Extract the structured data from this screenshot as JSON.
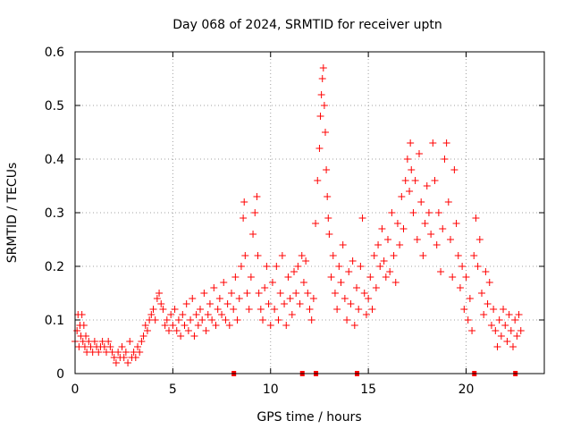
{
  "chart_data": {
    "type": "scatter",
    "title": "Day 068 of 2024, SRMTID for receiver uptn",
    "xlabel": "GPS time / hours",
    "ylabel": "SRMTID / TECUs",
    "xlim": [
      0,
      24
    ],
    "ylim": [
      0,
      0.6
    ],
    "x_ticks": [
      0,
      5,
      10,
      15,
      20
    ],
    "x_tick_labels": [
      "0",
      "5",
      "10",
      "15",
      "20"
    ],
    "y_ticks": [
      0,
      0.1,
      0.2,
      0.3,
      0.4,
      0.5,
      0.6
    ],
    "y_tick_labels": [
      "0",
      "0.1",
      "0.2",
      "0.3",
      "0.4",
      "0.5",
      "0.6"
    ],
    "grid": true,
    "marker": "+",
    "color": "#ff0000",
    "series": [
      {
        "name": "SRMTID",
        "points": [
          [
            0.0,
            0.06
          ],
          [
            0.1,
            0.08
          ],
          [
            0.15,
            0.11
          ],
          [
            0.2,
            0.05
          ],
          [
            0.25,
            0.09
          ],
          [
            0.3,
            0.07
          ],
          [
            0.35,
            0.11
          ],
          [
            0.4,
            0.06
          ],
          [
            0.45,
            0.09
          ],
          [
            0.5,
            0.05
          ],
          [
            0.55,
            0.07
          ],
          [
            0.6,
            0.04
          ],
          [
            0.7,
            0.06
          ],
          [
            0.8,
            0.05
          ],
          [
            0.9,
            0.04
          ],
          [
            1.0,
            0.06
          ],
          [
            1.1,
            0.05
          ],
          [
            1.2,
            0.04
          ],
          [
            1.3,
            0.05
          ],
          [
            1.4,
            0.06
          ],
          [
            1.5,
            0.05
          ],
          [
            1.6,
            0.04
          ],
          [
            1.7,
            0.06
          ],
          [
            1.8,
            0.05
          ],
          [
            1.9,
            0.04
          ],
          [
            2.0,
            0.03
          ],
          [
            2.1,
            0.02
          ],
          [
            2.2,
            0.04
          ],
          [
            2.3,
            0.03
          ],
          [
            2.4,
            0.05
          ],
          [
            2.5,
            0.03
          ],
          [
            2.6,
            0.04
          ],
          [
            2.7,
            0.02
          ],
          [
            2.8,
            0.06
          ],
          [
            2.9,
            0.03
          ],
          [
            3.0,
            0.04
          ],
          [
            3.1,
            0.03
          ],
          [
            3.2,
            0.05
          ],
          [
            3.3,
            0.04
          ],
          [
            3.4,
            0.06
          ],
          [
            3.5,
            0.07
          ],
          [
            3.6,
            0.09
          ],
          [
            3.7,
            0.08
          ],
          [
            3.8,
            0.1
          ],
          [
            3.9,
            0.11
          ],
          [
            4.0,
            0.12
          ],
          [
            4.1,
            0.1
          ],
          [
            4.2,
            0.14
          ],
          [
            4.3,
            0.15
          ],
          [
            4.4,
            0.13
          ],
          [
            4.5,
            0.12
          ],
          [
            4.6,
            0.09
          ],
          [
            4.7,
            0.1
          ],
          [
            4.8,
            0.08
          ],
          [
            4.9,
            0.11
          ],
          [
            5.0,
            0.09
          ],
          [
            5.1,
            0.12
          ],
          [
            5.2,
            0.08
          ],
          [
            5.3,
            0.1
          ],
          [
            5.4,
            0.07
          ],
          [
            5.5,
            0.11
          ],
          [
            5.6,
            0.09
          ],
          [
            5.7,
            0.13
          ],
          [
            5.8,
            0.08
          ],
          [
            5.9,
            0.1
          ],
          [
            6.0,
            0.14
          ],
          [
            6.1,
            0.07
          ],
          [
            6.2,
            0.11
          ],
          [
            6.3,
            0.09
          ],
          [
            6.4,
            0.12
          ],
          [
            6.5,
            0.1
          ],
          [
            6.6,
            0.15
          ],
          [
            6.7,
            0.08
          ],
          [
            6.8,
            0.11
          ],
          [
            6.9,
            0.13
          ],
          [
            7.0,
            0.1
          ],
          [
            7.1,
            0.16
          ],
          [
            7.2,
            0.09
          ],
          [
            7.3,
            0.12
          ],
          [
            7.4,
            0.14
          ],
          [
            7.5,
            0.11
          ],
          [
            7.6,
            0.17
          ],
          [
            7.7,
            0.1
          ],
          [
            7.8,
            0.13
          ],
          [
            7.9,
            0.09
          ],
          [
            8.0,
            0.15
          ],
          [
            8.1,
            0.12
          ],
          [
            8.2,
            0.18
          ],
          [
            8.3,
            0.1
          ],
          [
            8.4,
            0.14
          ],
          [
            8.5,
            0.2
          ],
          [
            8.6,
            0.29
          ],
          [
            8.65,
            0.32
          ],
          [
            8.7,
            0.22
          ],
          [
            8.8,
            0.15
          ],
          [
            8.9,
            0.12
          ],
          [
            9.0,
            0.18
          ],
          [
            9.1,
            0.26
          ],
          [
            9.2,
            0.3
          ],
          [
            9.3,
            0.33
          ],
          [
            9.35,
            0.22
          ],
          [
            9.4,
            0.15
          ],
          [
            9.5,
            0.12
          ],
          [
            9.6,
            0.1
          ],
          [
            9.7,
            0.16
          ],
          [
            9.8,
            0.2
          ],
          [
            9.9,
            0.13
          ],
          [
            10.0,
            0.09
          ],
          [
            10.1,
            0.17
          ],
          [
            10.2,
            0.12
          ],
          [
            10.3,
            0.2
          ],
          [
            10.4,
            0.1
          ],
          [
            10.5,
            0.15
          ],
          [
            10.6,
            0.22
          ],
          [
            10.7,
            0.13
          ],
          [
            10.8,
            0.09
          ],
          [
            10.9,
            0.18
          ],
          [
            11.0,
            0.14
          ],
          [
            11.1,
            0.11
          ],
          [
            11.2,
            0.19
          ],
          [
            11.3,
            0.15
          ],
          [
            11.4,
            0.2
          ],
          [
            11.5,
            0.13
          ],
          [
            11.6,
            0.22
          ],
          [
            11.7,
            0.17
          ],
          [
            11.8,
            0.21
          ],
          [
            11.9,
            0.15
          ],
          [
            12.0,
            0.12
          ],
          [
            12.1,
            0.1
          ],
          [
            12.2,
            0.14
          ],
          [
            12.3,
            0.28
          ],
          [
            12.4,
            0.36
          ],
          [
            12.5,
            0.42
          ],
          [
            12.55,
            0.48
          ],
          [
            12.6,
            0.52
          ],
          [
            12.65,
            0.55
          ],
          [
            12.7,
            0.57
          ],
          [
            12.75,
            0.5
          ],
          [
            12.8,
            0.45
          ],
          [
            12.85,
            0.38
          ],
          [
            12.9,
            0.33
          ],
          [
            12.95,
            0.29
          ],
          [
            13.0,
            0.26
          ],
          [
            13.1,
            0.18
          ],
          [
            13.2,
            0.22
          ],
          [
            13.3,
            0.15
          ],
          [
            13.4,
            0.12
          ],
          [
            13.5,
            0.2
          ],
          [
            13.6,
            0.17
          ],
          [
            13.7,
            0.24
          ],
          [
            13.8,
            0.14
          ],
          [
            13.9,
            0.1
          ],
          [
            14.0,
            0.19
          ],
          [
            14.1,
            0.13
          ],
          [
            14.2,
            0.21
          ],
          [
            14.3,
            0.09
          ],
          [
            14.4,
            0.16
          ],
          [
            14.5,
            0.12
          ],
          [
            14.6,
            0.2
          ],
          [
            14.7,
            0.29
          ],
          [
            14.8,
            0.15
          ],
          [
            14.9,
            0.11
          ],
          [
            15.0,
            0.14
          ],
          [
            15.1,
            0.18
          ],
          [
            15.2,
            0.12
          ],
          [
            15.3,
            0.22
          ],
          [
            15.4,
            0.16
          ],
          [
            15.5,
            0.24
          ],
          [
            15.6,
            0.2
          ],
          [
            15.7,
            0.27
          ],
          [
            15.8,
            0.21
          ],
          [
            15.9,
            0.18
          ],
          [
            16.0,
            0.25
          ],
          [
            16.1,
            0.19
          ],
          [
            16.2,
            0.3
          ],
          [
            16.3,
            0.22
          ],
          [
            16.4,
            0.17
          ],
          [
            16.5,
            0.28
          ],
          [
            16.6,
            0.24
          ],
          [
            16.7,
            0.33
          ],
          [
            16.8,
            0.27
          ],
          [
            16.9,
            0.36
          ],
          [
            17.0,
            0.4
          ],
          [
            17.1,
            0.34
          ],
          [
            17.15,
            0.43
          ],
          [
            17.2,
            0.38
          ],
          [
            17.3,
            0.3
          ],
          [
            17.4,
            0.36
          ],
          [
            17.5,
            0.25
          ],
          [
            17.6,
            0.41
          ],
          [
            17.7,
            0.32
          ],
          [
            17.8,
            0.22
          ],
          [
            17.9,
            0.28
          ],
          [
            18.0,
            0.35
          ],
          [
            18.1,
            0.3
          ],
          [
            18.2,
            0.26
          ],
          [
            18.3,
            0.43
          ],
          [
            18.4,
            0.36
          ],
          [
            18.5,
            0.24
          ],
          [
            18.6,
            0.3
          ],
          [
            18.7,
            0.19
          ],
          [
            18.8,
            0.27
          ],
          [
            18.9,
            0.4
          ],
          [
            19.0,
            0.43
          ],
          [
            19.1,
            0.32
          ],
          [
            19.2,
            0.25
          ],
          [
            19.3,
            0.18
          ],
          [
            19.4,
            0.38
          ],
          [
            19.5,
            0.28
          ],
          [
            19.6,
            0.22
          ],
          [
            19.7,
            0.16
          ],
          [
            19.8,
            0.2
          ],
          [
            19.9,
            0.12
          ],
          [
            20.0,
            0.18
          ],
          [
            20.1,
            0.1
          ],
          [
            20.2,
            0.14
          ],
          [
            20.3,
            0.08
          ],
          [
            20.4,
            0.22
          ],
          [
            20.5,
            0.29
          ],
          [
            20.6,
            0.2
          ],
          [
            20.7,
            0.25
          ],
          [
            20.8,
            0.15
          ],
          [
            20.9,
            0.11
          ],
          [
            21.0,
            0.19
          ],
          [
            21.1,
            0.13
          ],
          [
            21.2,
            0.17
          ],
          [
            21.3,
            0.09
          ],
          [
            21.4,
            0.12
          ],
          [
            21.5,
            0.08
          ],
          [
            21.6,
            0.05
          ],
          [
            21.7,
            0.1
          ],
          [
            21.8,
            0.07
          ],
          [
            21.9,
            0.12
          ],
          [
            22.0,
            0.09
          ],
          [
            22.1,
            0.06
          ],
          [
            22.2,
            0.11
          ],
          [
            22.3,
            0.08
          ],
          [
            22.4,
            0.05
          ],
          [
            22.5,
            0.1
          ],
          [
            22.6,
            0.07
          ],
          [
            22.7,
            0.11
          ],
          [
            22.8,
            0.08
          ]
        ]
      },
      {
        "name": "baseline markers",
        "points": [
          [
            8.1,
            0.0
          ],
          [
            11.6,
            0.0
          ],
          [
            12.3,
            0.0
          ],
          [
            14.4,
            0.0
          ],
          [
            20.4,
            0.0
          ],
          [
            22.5,
            0.0
          ]
        ]
      }
    ]
  }
}
